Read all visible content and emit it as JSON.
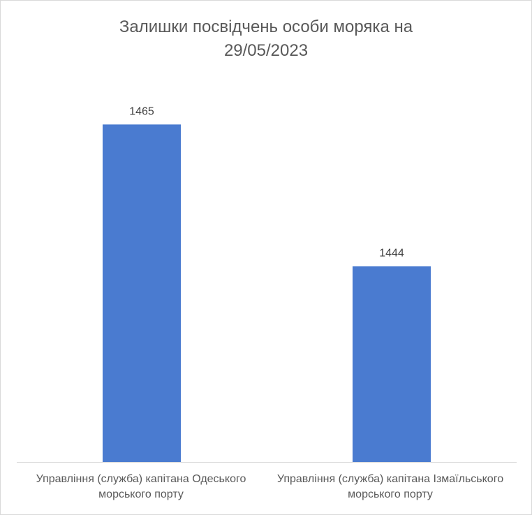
{
  "chart_data": {
    "type": "bar",
    "title_lines": [
      "Залишки посвідчень особи моряка на",
      "29/05/2023"
    ],
    "categories": [
      [
        "Управління (служба) капітана Одеського",
        "морського порту"
      ],
      [
        "Управління (служба) капітана Ізмаїльського",
        "морського порту"
      ]
    ],
    "values": [
      1465,
      1444
    ],
    "data_labels": [
      "1465",
      "1444"
    ],
    "xlabel": "",
    "ylabel": "",
    "ylim": [
      1415,
      1470
    ],
    "grid": false,
    "legend": false,
    "colors": {
      "bar": "#4a7bd0",
      "axis": "#d9d9d9",
      "text": "#595959"
    }
  }
}
